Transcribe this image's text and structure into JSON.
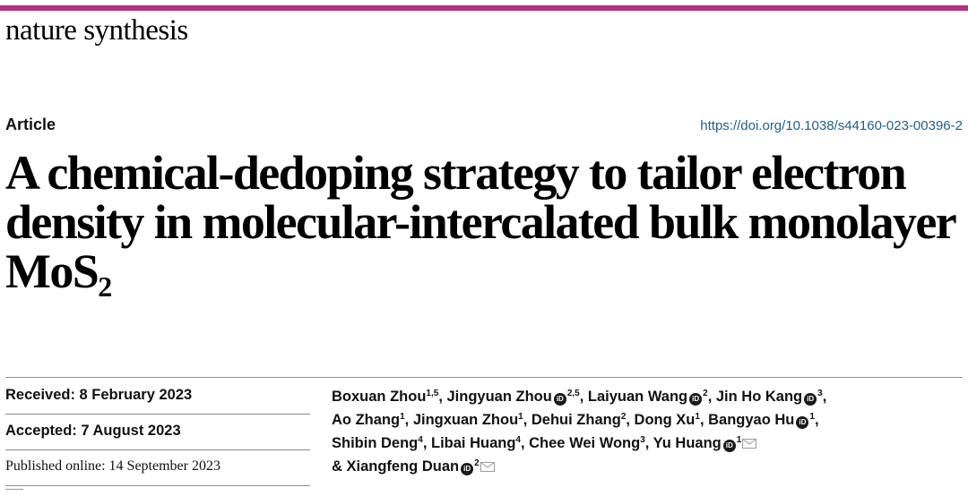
{
  "journal": {
    "name": "nature synthesis",
    "brand_color": "#b52f84"
  },
  "article": {
    "type": "Article",
    "doi": "https://doi.org/10.1038/s44160-023-00396-2",
    "title_main": "A chemical-dedoping strategy to tailor electron density in molecular-intercalated bulk monolayer MoS",
    "title_subscript": "2"
  },
  "dates": {
    "received": "Received: 8 February 2023",
    "accepted": "Accepted: 7 August 2023",
    "published": "Published online: 14 September 2023"
  },
  "authors": [
    {
      "name": "Boxuan Zhou",
      "aff": "1,5",
      "orcid": false,
      "email": false,
      "sep": ", "
    },
    {
      "name": "Jingyuan Zhou",
      "aff": "2,5",
      "orcid": true,
      "email": false,
      "sep": ", "
    },
    {
      "name": "Laiyuan Wang",
      "aff": "2",
      "orcid": true,
      "email": false,
      "sep": ", "
    },
    {
      "name": "Jin Ho Kang",
      "aff": "3",
      "orcid": true,
      "email": false,
      "sep": ","
    },
    {
      "name": "Ao Zhang",
      "aff": "1",
      "orcid": false,
      "email": false,
      "sep": ", "
    },
    {
      "name": "Jingxuan Zhou",
      "aff": "1",
      "orcid": false,
      "email": false,
      "sep": ", "
    },
    {
      "name": "Dehui Zhang",
      "aff": "2",
      "orcid": false,
      "email": false,
      "sep": ", "
    },
    {
      "name": "Dong Xu",
      "aff": "1",
      "orcid": false,
      "email": false,
      "sep": ", "
    },
    {
      "name": "Bangyao Hu",
      "aff": "1",
      "orcid": true,
      "email": false,
      "sep": ","
    },
    {
      "name": "Shibin Deng",
      "aff": "4",
      "orcid": false,
      "email": false,
      "sep": ", "
    },
    {
      "name": "Libai Huang",
      "aff": "4",
      "orcid": false,
      "email": false,
      "sep": ", "
    },
    {
      "name": "Chee Wei Wong",
      "aff": "3",
      "orcid": false,
      "email": false,
      "sep": ", "
    },
    {
      "name": "Yu Huang",
      "aff": "1",
      "orcid": true,
      "email": true,
      "sep": ""
    },
    {
      "name": "Xiangfeng Duan",
      "aff": "2",
      "orcid": true,
      "email": true,
      "sep": "",
      "prefix": "& "
    }
  ],
  "author_lines": [
    [
      0,
      1,
      2,
      3
    ],
    [
      4,
      5,
      6,
      7,
      8
    ],
    [
      9,
      10,
      11,
      12
    ],
    [
      13
    ]
  ],
  "icons": {
    "orcid": "orcid-icon",
    "email": "envelope-icon"
  }
}
